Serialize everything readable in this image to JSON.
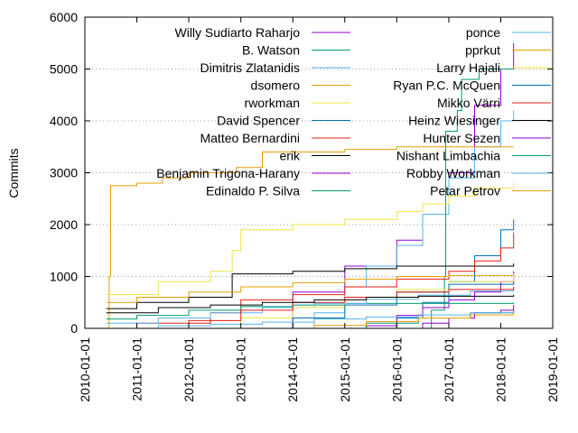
{
  "chart_data": {
    "type": "line",
    "title": "",
    "xlabel": "",
    "ylabel": "Commits",
    "xlim": [
      "2010-01-01",
      "2019-01-01"
    ],
    "ylim": [
      0,
      6000
    ],
    "x_ticks": [
      "2010-01-01",
      "2011-01-01",
      "2012-01-01",
      "2013-01-01",
      "2014-01-01",
      "2015-01-01",
      "2016-01-01",
      "2017-01-01",
      "2018-01-01",
      "2019-01-01"
    ],
    "y_ticks": [
      0,
      1000,
      2000,
      3000,
      4000,
      5000,
      6000
    ],
    "grid": "horizontal dotted",
    "legend_placement": "top, two columns",
    "series": [
      {
        "name": "Willy Sudiarto Raharjo",
        "color": "#9400d3",
        "points": [
          [
            "2013-06-01",
            0
          ],
          [
            "2014-01-01",
            700
          ],
          [
            "2015-01-01",
            1200
          ],
          [
            "2016-01-01",
            1700
          ],
          [
            "2016-07-01",
            2200
          ],
          [
            "2017-01-01",
            3000
          ],
          [
            "2017-07-01",
            4300
          ],
          [
            "2018-01-01",
            5000
          ],
          [
            "2018-04-01",
            5500
          ]
        ]
      },
      {
        "name": "B. Watson",
        "color": "#009e73",
        "points": [
          [
            "2016-06-01",
            0
          ],
          [
            "2016-09-01",
            350
          ],
          [
            "2016-12-01",
            1000
          ],
          [
            "2016-12-10",
            3800
          ],
          [
            "2017-03-01",
            4200
          ],
          [
            "2017-04-01",
            4800
          ],
          [
            "2017-08-01",
            5000
          ],
          [
            "2018-04-01",
            5000
          ]
        ]
      },
      {
        "name": "Dimitris Zlatanidis",
        "color": "#56b4e9",
        "points": [
          [
            "2014-01-01",
            0
          ],
          [
            "2014-06-01",
            300
          ],
          [
            "2015-01-01",
            800
          ],
          [
            "2015-06-01",
            1200
          ],
          [
            "2016-01-01",
            1600
          ],
          [
            "2016-07-01",
            2200
          ],
          [
            "2017-01-01",
            2900
          ],
          [
            "2017-07-01",
            3500
          ],
          [
            "2018-01-01",
            4000
          ],
          [
            "2018-04-01",
            4200
          ]
        ]
      },
      {
        "name": "dsomero",
        "color": "#e69f00",
        "points": [
          [
            "2010-06-01",
            0
          ],
          [
            "2010-06-20",
            1000
          ],
          [
            "2010-07-01",
            2750
          ],
          [
            "2011-01-01",
            2800
          ],
          [
            "2011-07-01",
            2900
          ],
          [
            "2012-01-01",
            3000
          ],
          [
            "2012-12-01",
            3100
          ],
          [
            "2013-06-01",
            3400
          ],
          [
            "2015-01-01",
            3450
          ],
          [
            "2016-01-01",
            3500
          ],
          [
            "2018-04-01",
            3500
          ]
        ]
      },
      {
        "name": "rworkman",
        "color": "#f0e442",
        "points": [
          [
            "2010-06-01",
            650
          ],
          [
            "2011-06-01",
            900
          ],
          [
            "2012-06-01",
            1100
          ],
          [
            "2012-11-01",
            1500
          ],
          [
            "2013-01-01",
            1900
          ],
          [
            "2014-01-01",
            2000
          ],
          [
            "2015-01-01",
            2100
          ],
          [
            "2016-01-01",
            2250
          ],
          [
            "2016-07-01",
            2400
          ],
          [
            "2017-01-01",
            2550
          ],
          [
            "2017-07-01",
            2700
          ],
          [
            "2018-04-01",
            2800
          ]
        ]
      },
      {
        "name": "David Spencer",
        "color": "#0072b2",
        "points": [
          [
            "2015-06-01",
            0
          ],
          [
            "2016-01-01",
            200
          ],
          [
            "2016-07-01",
            500
          ],
          [
            "2017-01-01",
            900
          ],
          [
            "2017-07-01",
            1400
          ],
          [
            "2018-01-01",
            1900
          ],
          [
            "2018-04-01",
            2100
          ]
        ]
      },
      {
        "name": "Matteo Bernardini",
        "color": "#e51e10",
        "points": [
          [
            "2010-06-01",
            0
          ],
          [
            "2011-01-01",
            100
          ],
          [
            "2012-06-01",
            300
          ],
          [
            "2013-01-01",
            550
          ],
          [
            "2014-01-01",
            650
          ],
          [
            "2015-01-01",
            800
          ],
          [
            "2016-01-01",
            950
          ],
          [
            "2017-01-01",
            1100
          ],
          [
            "2017-07-01",
            1300
          ],
          [
            "2018-01-01",
            1550
          ],
          [
            "2018-04-01",
            1850
          ]
        ]
      },
      {
        "name": "erik",
        "color": "#000000",
        "points": [
          [
            "2010-06-01",
            380
          ],
          [
            "2011-01-01",
            500
          ],
          [
            "2012-01-01",
            600
          ],
          [
            "2012-11-01",
            1050
          ],
          [
            "2014-01-01",
            1100
          ],
          [
            "2015-01-01",
            1150
          ],
          [
            "2016-01-01",
            1200
          ],
          [
            "2018-04-01",
            1250
          ]
        ]
      },
      {
        "name": "Benjamin Trigona-Harany",
        "color": "#9400d3",
        "points": [
          [
            "2015-01-01",
            0
          ],
          [
            "2015-06-01",
            50
          ],
          [
            "2016-01-01",
            250
          ],
          [
            "2016-07-01",
            400
          ],
          [
            "2017-01-01",
            550
          ],
          [
            "2017-07-01",
            700
          ],
          [
            "2018-01-01",
            900
          ],
          [
            "2018-04-01",
            1100
          ]
        ]
      },
      {
        "name": "Edinaldo P. Silva",
        "color": "#009e73",
        "points": [
          [
            "2010-06-01",
            180
          ],
          [
            "2011-01-01",
            250
          ],
          [
            "2012-01-01",
            350
          ],
          [
            "2013-01-01",
            420
          ],
          [
            "2014-01-01",
            450
          ],
          [
            "2015-01-01",
            480
          ],
          [
            "2018-04-01",
            500
          ]
        ]
      },
      {
        "name": "ponce",
        "color": "#56b4e9",
        "points": [
          [
            "2010-06-01",
            100
          ],
          [
            "2011-06-01",
            200
          ],
          [
            "2012-06-01",
            300
          ],
          [
            "2013-06-01",
            400
          ],
          [
            "2014-06-01",
            480
          ],
          [
            "2015-06-01",
            560
          ],
          [
            "2016-06-01",
            640
          ],
          [
            "2017-06-01",
            720
          ],
          [
            "2018-04-01",
            800
          ]
        ]
      },
      {
        "name": "pprkut",
        "color": "#e69f00",
        "points": [
          [
            "2010-06-01",
            500
          ],
          [
            "2011-01-01",
            600
          ],
          [
            "2012-01-01",
            700
          ],
          [
            "2013-01-01",
            800
          ],
          [
            "2014-01-01",
            880
          ],
          [
            "2015-01-01",
            950
          ],
          [
            "2016-01-01",
            1000
          ],
          [
            "2017-01-01",
            1020
          ],
          [
            "2018-04-01",
            1050
          ]
        ]
      },
      {
        "name": "Larry Hajali",
        "color": "#f0e442",
        "points": [
          [
            "2012-06-01",
            0
          ],
          [
            "2013-01-01",
            200
          ],
          [
            "2014-01-01",
            400
          ],
          [
            "2015-01-01",
            600
          ],
          [
            "2016-01-01",
            750
          ],
          [
            "2017-01-01",
            900
          ],
          [
            "2018-04-01",
            1050
          ]
        ]
      },
      {
        "name": "Ryan P.C. McQuen",
        "color": "#0072b2",
        "points": [
          [
            "2013-01-01",
            0
          ],
          [
            "2014-01-01",
            200
          ],
          [
            "2015-01-01",
            450
          ],
          [
            "2016-01-01",
            700
          ],
          [
            "2017-01-01",
            850
          ],
          [
            "2018-04-01",
            900
          ]
        ]
      },
      {
        "name": "Mikko Värri",
        "color": "#e51e10",
        "points": [
          [
            "2011-01-01",
            0
          ],
          [
            "2012-01-01",
            150
          ],
          [
            "2013-01-01",
            350
          ],
          [
            "2014-01-01",
            500
          ],
          [
            "2015-01-01",
            600
          ],
          [
            "2016-01-01",
            700
          ],
          [
            "2017-01-01",
            750
          ],
          [
            "2018-04-01",
            800
          ]
        ]
      },
      {
        "name": "Heinz Wiesinger",
        "color": "#000000",
        "points": [
          [
            "2010-06-01",
            300
          ],
          [
            "2011-06-01",
            400
          ],
          [
            "2012-06-01",
            450
          ],
          [
            "2013-06-01",
            500
          ],
          [
            "2014-06-01",
            550
          ],
          [
            "2015-06-01",
            600
          ],
          [
            "2016-06-01",
            620
          ],
          [
            "2018-04-01",
            650
          ]
        ]
      },
      {
        "name": "Hunter Sezen",
        "color": "#9400d3",
        "points": [
          [
            "2016-01-01",
            0
          ],
          [
            "2016-07-01",
            100
          ],
          [
            "2017-01-01",
            200
          ],
          [
            "2017-07-01",
            300
          ],
          [
            "2018-01-01",
            350
          ],
          [
            "2018-04-01",
            450
          ]
        ]
      },
      {
        "name": "Nishant Limbachia",
        "color": "#009e73",
        "points": [
          [
            "2014-06-01",
            0
          ],
          [
            "2015-06-01",
            100
          ],
          [
            "2016-06-01",
            200
          ],
          [
            "2017-06-01",
            300
          ],
          [
            "2018-04-01",
            350
          ]
        ]
      },
      {
        "name": "Robby Workman",
        "color": "#56b4e9",
        "points": [
          [
            "2010-06-01",
            0
          ],
          [
            "2011-06-01",
            50
          ],
          [
            "2012-06-01",
            80
          ],
          [
            "2013-06-01",
            120
          ],
          [
            "2014-06-01",
            180
          ],
          [
            "2015-06-01",
            220
          ],
          [
            "2016-06-01",
            260
          ],
          [
            "2017-06-01",
            300
          ],
          [
            "2018-04-01",
            330
          ]
        ]
      },
      {
        "name": "Petar Petrov",
        "color": "#e69f00",
        "points": [
          [
            "2013-06-01",
            0
          ],
          [
            "2014-06-01",
            60
          ],
          [
            "2015-06-01",
            130
          ],
          [
            "2016-06-01",
            200
          ],
          [
            "2017-06-01",
            260
          ],
          [
            "2018-04-01",
            300
          ]
        ]
      }
    ]
  }
}
